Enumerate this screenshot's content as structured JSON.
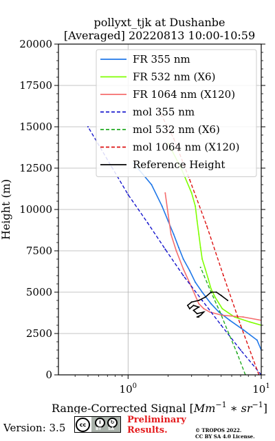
{
  "chart_data": {
    "type": "line",
    "title": "pollyxt_tjk at Dushanbe",
    "subtitle": "[Averaged] 20220813 10:00-10:59",
    "xlabel": "Range-Corrected Signal [Mm^{-1} * sr^{-1}]",
    "xlabel_parts": {
      "main": "Range-Corrected Signal [",
      "unit_a": "Mm",
      "exp_a": "−1",
      "star": " ∗ ",
      "unit_b": "sr",
      "exp_b": "−1",
      "end": "]"
    },
    "ylabel": "Height (m)",
    "xscale": "log",
    "xlim": [
      0.3,
      10
    ],
    "ylim": [
      0,
      20000
    ],
    "xticks": [
      {
        "value": 1,
        "base": "10",
        "exp": "0"
      },
      {
        "value": 10,
        "base": "10",
        "exp": "1"
      }
    ],
    "yticks": [
      0,
      2500,
      5000,
      7500,
      10000,
      12500,
      15000,
      17500,
      20000
    ],
    "grid": true,
    "legend_placement": "top-right",
    "series": [
      {
        "name": "FR 355 nm",
        "color": "#1f77e8",
        "dash": "solid",
        "x": [
          10.0,
          9.3,
          7.4,
          5.8,
          4.8,
          4.2,
          3.6,
          3.2,
          2.9,
          2.6,
          2.4,
          2.2,
          2.0,
          1.8,
          1.5,
          1.1
        ],
        "y": [
          1500,
          2100,
          2700,
          3300,
          3800,
          4300,
          5000,
          5600,
          6300,
          7000,
          7700,
          8500,
          9300,
          10200,
          11500,
          12800
        ]
      },
      {
        "name": "FR 532 nm (X6)",
        "color": "#7fff00",
        "dash": "solid",
        "x": [
          10.0,
          8.2,
          6.3,
          5.1,
          4.5,
          4.2,
          4.0,
          3.8,
          3.6,
          3.5,
          3.4,
          3.3,
          3.2,
          3.0,
          2.5,
          2.0
        ],
        "y": [
          3000,
          3200,
          3500,
          4000,
          4700,
          5200,
          5800,
          6400,
          7000,
          7700,
          8500,
          9300,
          10200,
          11000,
          12500,
          14000
        ]
      },
      {
        "name": "FR 1064 nm (X120)",
        "color": "#f46d6d",
        "dash": "solid",
        "x": [
          10.0,
          7.3,
          5.1,
          4.1,
          3.7,
          3.4,
          3.0,
          2.6,
          2.3,
          2.1,
          2.0,
          1.9
        ],
        "y": [
          3300,
          3500,
          3600,
          3800,
          4000,
          4300,
          5300,
          6400,
          7500,
          8500,
          9700,
          11000
        ]
      },
      {
        "name": "mol 355 nm",
        "color": "#1414cc",
        "dash": "dashed",
        "x": [
          10.0,
          7.0,
          5.0,
          3.6,
          2.6,
          1.9,
          1.4,
          1.0,
          0.75,
          0.5
        ],
        "y": [
          0,
          1500,
          3000,
          4500,
          6000,
          7600,
          9200,
          10900,
          12600,
          15000
        ]
      },
      {
        "name": "mol 532 nm (X6)",
        "color": "#22aa22",
        "dash": "dashed",
        "x": [
          7.6,
          6.6,
          5.7,
          4.9,
          4.2,
          3.5
        ],
        "y": [
          0,
          1300,
          2500,
          3800,
          5000,
          6500
        ]
      },
      {
        "name": "mol 1064 nm (X120)",
        "color": "#dd1111",
        "dash": "dashed",
        "x": [
          9.6,
          7.0,
          5.2,
          3.9,
          2.9,
          2.2,
          1.7
        ],
        "y": [
          0,
          3000,
          6000,
          9000,
          11800,
          14300,
          16000
        ]
      },
      {
        "name": "Reference Height",
        "color": "#000000",
        "dash": "solid",
        "x": [
          5.6,
          5.0,
          4.6,
          4.2,
          3.8,
          3.4,
          3.0,
          2.8,
          2.9,
          3.1,
          3.4,
          3.1,
          3.3,
          3.7,
          3.5,
          3.3,
          3.4
        ],
        "y": [
          4500,
          4800,
          5000,
          5000,
          4700,
          4500,
          4400,
          4200,
          4000,
          4200,
          4100,
          3900,
          3700,
          3800,
          3600,
          3500,
          3500
        ]
      }
    ]
  },
  "footer": {
    "version": "Version: 3.5",
    "cc_label_by": "BY",
    "cc_label_sa": "SA",
    "cc_glyph": "cc",
    "preliminary_line1": "Preliminary",
    "preliminary_line2": "Results.",
    "copyright_line1": "© TROPOS 2022.",
    "copyright_line2": "CC BY SA 4.0 License."
  }
}
